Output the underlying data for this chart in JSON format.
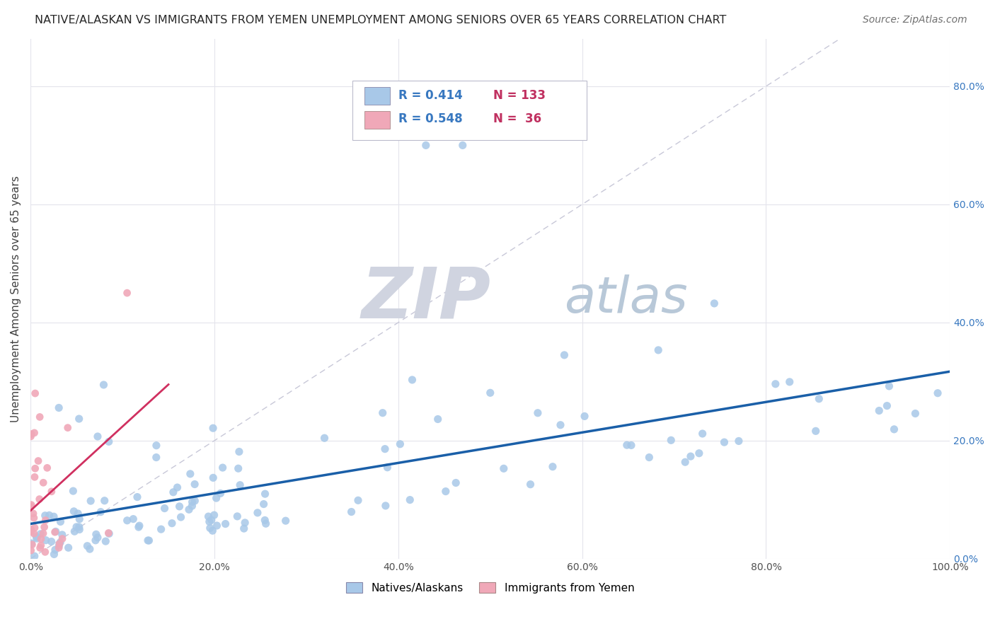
{
  "title": "NATIVE/ALASKAN VS IMMIGRANTS FROM YEMEN UNEMPLOYMENT AMONG SENIORS OVER 65 YEARS CORRELATION CHART",
  "source": "Source: ZipAtlas.com",
  "ylabel": "Unemployment Among Seniors over 65 years",
  "xlim": [
    0,
    1.0
  ],
  "ylim": [
    0,
    0.88
  ],
  "xticks": [
    0.0,
    0.2,
    0.4,
    0.6,
    0.8,
    1.0
  ],
  "yticks": [
    0.0,
    0.2,
    0.4,
    0.6,
    0.8
  ],
  "xticklabels": [
    "0.0%",
    "20.0%",
    "40.0%",
    "60.0%",
    "80.0%",
    "100.0%"
  ],
  "right_yticklabels": [
    "0.0%",
    "20.0%",
    "40.0%",
    "60.0%",
    "80.0%"
  ],
  "native_R": 0.414,
  "native_N": 133,
  "yemen_R": 0.548,
  "yemen_N": 36,
  "native_color": "#a8c8e8",
  "native_line_color": "#1a5fa8",
  "yemen_color": "#f0a8b8",
  "yemen_line_color": "#d03060",
  "diagonal_color": "#c8c8d8",
  "background_color": "#ffffff",
  "grid_color": "#e4e4ec",
  "title_color": "#282828",
  "source_color": "#707070",
  "legend_R_color": "#3878c0",
  "legend_N_color": "#c03060",
  "right_tick_color": "#3878c0",
  "watermark_ZIP_color": "#d0d4e0",
  "watermark_atlas_color": "#b8c8d8"
}
